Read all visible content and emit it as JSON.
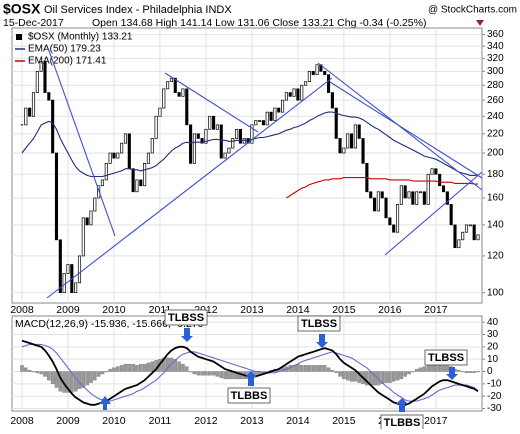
{
  "chart_data": [
    {
      "type": "candlestick",
      "title": "$OSX",
      "subtitle": "Oil Services Index - Philadelphia INDX",
      "source": "@ StockCharts.com",
      "date": "15-Dec-2017",
      "quote": "Open 134.68 High 141.14 Low 131.06 Close 133.21 Chg -0.34 (-0.25%)",
      "log": true,
      "grid": true,
      "ylim": [
        95,
        372
      ],
      "yticks": [
        360,
        340,
        320,
        300,
        280,
        260,
        240,
        220,
        200,
        180,
        160,
        140,
        120,
        100
      ],
      "categories": [
        "2008",
        null,
        null,
        null,
        null,
        null,
        null,
        null,
        null,
        null,
        null,
        null,
        "2009",
        null,
        null,
        null,
        null,
        null,
        null,
        null,
        null,
        null,
        null,
        null,
        "2010",
        null,
        null,
        null,
        null,
        null,
        null,
        null,
        null,
        null,
        null,
        null,
        "2011",
        null,
        null,
        null,
        null,
        null,
        null,
        null,
        null,
        null,
        null,
        null,
        "2012",
        null,
        null,
        null,
        null,
        null,
        null,
        null,
        null,
        null,
        null,
        null,
        "2013",
        null,
        null,
        null,
        null,
        null,
        null,
        null,
        null,
        null,
        null,
        null,
        "2014",
        null,
        null,
        null,
        null,
        null,
        null,
        null,
        null,
        null,
        null,
        null,
        "2015",
        null,
        null,
        null,
        null,
        null,
        null,
        null,
        null,
        null,
        null,
        null,
        "2016",
        null,
        null,
        null,
        null,
        null,
        null,
        null,
        null,
        null,
        null,
        null,
        "2017",
        null,
        null,
        null,
        null,
        null,
        null,
        null,
        null,
        null,
        null,
        null
      ],
      "series": [
        {
          "name": "$OSX (Monthly) 133.21",
          "color": "#000000",
          "style": "candle",
          "values": [
            230,
            250,
            240,
            270,
            300,
            315,
            270,
            260,
            200,
            130,
            100,
            110,
            115,
            100,
            105,
            120,
            145,
            140,
            150,
            160,
            170,
            175,
            190,
            200,
            195,
            200,
            210,
            220,
            185,
            165,
            175,
            170,
            190,
            200,
            215,
            240,
            250,
            275,
            285,
            290,
            270,
            265,
            275,
            230,
            190,
            220,
            215,
            210,
            225,
            240,
            225,
            230,
            195,
            200,
            205,
            215,
            225,
            210,
            215,
            210,
            230,
            235,
            235,
            230,
            245,
            235,
            250,
            245,
            260,
            270,
            265,
            275,
            260,
            280,
            285,
            300,
            295,
            310,
            300,
            295,
            270,
            250,
            215,
            200,
            205,
            220,
            205,
            230,
            215,
            190,
            165,
            160,
            150,
            165,
            160,
            145,
            140,
            135,
            155,
            170,
            160,
            165,
            155,
            165,
            165,
            155,
            180,
            185,
            180,
            170,
            165,
            155,
            140,
            125,
            130,
            135,
            140,
            140,
            130,
            133.21
          ]
        },
        {
          "name": "EMA(50) 179.23",
          "color": "#1f2f7a",
          "style": "line",
          "values": [
            200,
            205,
            210,
            215,
            222,
            230,
            232,
            234,
            232,
            225,
            215,
            207,
            200,
            193,
            187,
            183,
            181,
            179,
            178,
            178,
            178,
            178,
            179,
            180,
            181,
            182,
            183,
            185,
            185,
            184,
            184,
            183,
            184,
            185,
            186,
            188,
            191,
            194,
            198,
            202,
            205,
            207,
            210,
            211,
            210,
            211,
            211,
            211,
            212,
            213,
            214,
            214,
            213,
            213,
            212,
            212,
            213,
            213,
            213,
            213,
            214,
            215,
            216,
            216,
            217,
            218,
            219,
            220,
            222,
            224,
            225,
            227,
            228,
            230,
            232,
            235,
            237,
            240,
            242,
            244,
            245,
            245,
            244,
            242,
            241,
            240,
            239,
            239,
            238,
            236,
            233,
            230,
            227,
            225,
            222,
            219,
            216,
            213,
            211,
            209,
            207,
            205,
            203,
            201,
            199,
            197,
            196,
            195,
            194,
            192,
            190,
            188,
            186,
            184,
            182,
            181,
            180,
            179,
            179,
            179.23
          ]
        },
        {
          "name": "EMA(200) 171.41",
          "color": "#cc0000",
          "style": "line",
          "values": [
            null,
            null,
            null,
            null,
            null,
            null,
            null,
            null,
            null,
            null,
            null,
            null,
            null,
            null,
            null,
            null,
            null,
            null,
            null,
            null,
            null,
            null,
            null,
            null,
            null,
            null,
            null,
            null,
            null,
            null,
            null,
            null,
            null,
            null,
            null,
            null,
            null,
            null,
            null,
            null,
            null,
            null,
            null,
            null,
            null,
            null,
            null,
            null,
            null,
            null,
            null,
            null,
            null,
            null,
            null,
            null,
            null,
            null,
            null,
            null,
            null,
            null,
            null,
            null,
            null,
            null,
            null,
            null,
            null,
            160,
            162,
            164,
            166,
            168,
            169,
            171,
            172,
            173,
            174,
            175,
            175,
            176,
            176,
            176,
            177,
            177,
            177,
            177,
            177,
            177,
            177,
            176,
            176,
            176,
            176,
            176,
            175,
            175,
            175,
            175,
            175,
            175,
            174,
            174,
            174,
            174,
            174,
            174,
            174,
            173,
            173,
            173,
            173,
            172,
            172,
            172,
            172,
            172,
            171.5,
            171.41
          ]
        }
      ]
    },
    {
      "type": "macd",
      "label": "MACD(12,26,9) -15.936, -15.666, -0.270",
      "grid": true,
      "ylim": [
        -32,
        45
      ],
      "yticks": [
        40,
        30,
        20,
        10,
        0,
        -10,
        -20,
        -30
      ],
      "annotations": [
        "TLBSS",
        "TLBBS",
        "TLBSS",
        "TLBBS",
        "TLBSS"
      ],
      "categories": [
        "2008",
        null,
        null,
        null,
        null,
        null,
        null,
        null,
        null,
        null,
        null,
        null,
        "2009",
        null,
        null,
        null,
        null,
        null,
        null,
        null,
        null,
        null,
        null,
        null,
        "2010",
        null,
        null,
        null,
        null,
        null,
        null,
        null,
        null,
        null,
        null,
        null,
        "2011",
        null,
        null,
        null,
        null,
        null,
        null,
        null,
        null,
        null,
        null,
        null,
        "2012",
        null,
        null,
        null,
        null,
        null,
        null,
        null,
        null,
        null,
        null,
        null,
        "2013",
        null,
        null,
        null,
        null,
        null,
        null,
        null,
        null,
        null,
        null,
        null,
        "2014",
        null,
        null,
        null,
        null,
        null,
        null,
        null,
        null,
        null,
        null,
        null,
        "2015",
        null,
        null,
        null,
        null,
        null,
        null,
        null,
        null,
        null,
        null,
        null,
        "2016",
        null,
        null,
        null,
        null,
        null,
        null,
        null,
        null,
        null,
        null,
        null,
        "2017",
        null,
        null,
        null,
        null,
        null,
        null,
        null,
        null,
        null,
        null,
        null
      ],
      "series": [
        {
          "color": "#999999",
          "style": "bar",
          "values": [
            5,
            3,
            1,
            0,
            -1,
            -2,
            -4,
            -7,
            -10,
            -13,
            -16,
            -17,
            -17,
            -17,
            -16,
            -14,
            -13,
            -11,
            -9,
            -7,
            -4,
            -2,
            0,
            2,
            3,
            4,
            5,
            6,
            6,
            6,
            5,
            6,
            6,
            7,
            8,
            9,
            10,
            11,
            11,
            11,
            10,
            8,
            6,
            4,
            0,
            -2,
            -3,
            -3,
            -3,
            -3,
            -3,
            -4,
            -5,
            -6,
            -6,
            -6,
            -6,
            -6,
            -6,
            -6,
            -5,
            -4,
            -3,
            -1,
            0,
            1,
            2,
            2,
            3,
            4,
            5,
            5,
            6,
            5,
            5,
            5,
            5,
            5,
            5,
            5,
            3,
            1,
            -1,
            -4,
            -6,
            -7,
            -8,
            -8,
            -9,
            -10,
            -11,
            -11,
            -11,
            -11,
            -10,
            -9,
            -9,
            -8,
            -7,
            -6,
            -4,
            -2,
            0,
            2,
            3,
            4,
            6,
            7,
            7,
            7,
            7,
            6,
            4,
            2,
            1,
            0,
            -1,
            -1,
            -1,
            -0.27
          ]
        },
        {
          "color": "#6a6ad0",
          "style": "line",
          "values": [
            20,
            21,
            22,
            22,
            22,
            22,
            21,
            20,
            18,
            15,
            11,
            7,
            3,
            -1,
            -5,
            -9,
            -12,
            -15,
            -18,
            -20,
            -22,
            -23,
            -24,
            -24,
            -23,
            -22,
            -21,
            -20,
            -19,
            -18,
            -16,
            -15,
            -13,
            -11,
            -9,
            -7,
            -4,
            -1,
            3,
            6,
            9,
            12,
            14,
            15,
            16,
            16,
            15,
            14,
            13,
            12,
            11,
            10,
            9,
            8,
            7,
            6,
            5,
            4,
            3,
            2,
            1,
            0,
            0,
            -1,
            -1,
            -1,
            -1,
            0,
            1,
            2,
            3,
            5,
            6,
            8,
            9,
            10,
            11,
            12,
            13,
            14,
            15,
            16,
            15,
            14,
            13,
            12,
            11,
            9,
            7,
            5,
            3,
            0,
            -3,
            -6,
            -9,
            -12,
            -14,
            -17,
            -19,
            -21,
            -23,
            -24,
            -24,
            -24,
            -23,
            -22,
            -21,
            -19,
            -17,
            -15,
            -14,
            -13,
            -12,
            -11,
            -11,
            -11,
            -11,
            -12,
            -13,
            -15.666
          ]
        },
        {
          "color": "#000000",
          "style": "line",
          "width": 1.8,
          "values": [
            25,
            24,
            23,
            22,
            21,
            20,
            17,
            13,
            8,
            2,
            -5,
            -10,
            -14,
            -18,
            -21,
            -23,
            -25,
            -26,
            -27,
            -27,
            -26,
            -25,
            -24,
            -22,
            -20,
            -18,
            -16,
            -14,
            -13,
            -12,
            -11,
            -9,
            -7,
            -4,
            -1,
            2,
            6,
            10,
            14,
            17,
            19,
            20,
            20,
            19,
            16,
            14,
            12,
            11,
            10,
            9,
            8,
            6,
            4,
            2,
            1,
            0,
            -1,
            -2,
            -3,
            -4,
            -4,
            -4,
            -3,
            -2,
            -1,
            0,
            1,
            2,
            4,
            6,
            8,
            10,
            12,
            13,
            14,
            15,
            16,
            17,
            18,
            19,
            18,
            17,
            14,
            10,
            7,
            5,
            3,
            1,
            -2,
            -5,
            -8,
            -11,
            -14,
            -17,
            -19,
            -21,
            -23,
            -25,
            -26,
            -27,
            -27,
            -26,
            -24,
            -22,
            -20,
            -18,
            -15,
            -12,
            -10,
            -8,
            -7,
            -7,
            -8,
            -9,
            -10,
            -11,
            -12,
            -13,
            -14,
            -15.936
          ]
        }
      ]
    }
  ]
}
